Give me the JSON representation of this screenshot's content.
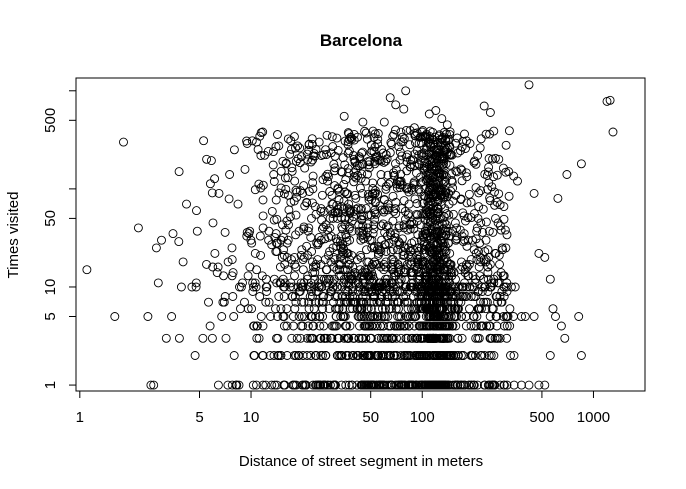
{
  "chart_data": {
    "type": "scatter",
    "title": "Barcelona",
    "xlabel": "Distance of street segment in meters",
    "ylabel": "Times visited",
    "x_scale": "log",
    "y_scale": "log",
    "xlim": [
      0.95,
      2000
    ],
    "ylim": [
      0.87,
      1350
    ],
    "x_ticks": [
      1,
      5,
      10,
      50,
      100,
      500,
      1000
    ],
    "x_tick_labels": [
      "1",
      "5",
      "10",
      "50",
      "100",
      "500",
      "1000"
    ],
    "y_ticks": [
      1,
      5,
      10,
      50,
      500
    ],
    "y_tick_labels": [
      "1",
      "5",
      "10",
      "50",
      "500"
    ],
    "y_minor_ticks": [
      100,
      1000
    ],
    "grid": false,
    "legend": "none",
    "marker": "open-circle",
    "sampled_points": [
      [
        1.1,
        15
      ],
      [
        1.6,
        5
      ],
      [
        1.8,
        300
      ],
      [
        2.2,
        40
      ],
      [
        2.5,
        5
      ],
      [
        2.6,
        1
      ],
      [
        2.7,
        1
      ],
      [
        2.8,
        25
      ],
      [
        3.0,
        30
      ],
      [
        3.2,
        3
      ],
      [
        3.5,
        35
      ],
      [
        3.8,
        150
      ],
      [
        4.2,
        70
      ],
      [
        4.8,
        60
      ],
      [
        5.5,
        200
      ],
      [
        6.0,
        45
      ],
      [
        6.5,
        90
      ],
      [
        7.5,
        140
      ],
      [
        8.0,
        250
      ],
      [
        9.5,
        290
      ],
      [
        12,
        220
      ],
      [
        14,
        270
      ],
      [
        16,
        180
      ],
      [
        18,
        120
      ],
      [
        20,
        90
      ],
      [
        25,
        300
      ],
      [
        30,
        270
      ],
      [
        35,
        550
      ],
      [
        40,
        200
      ],
      [
        45,
        480
      ],
      [
        55,
        320
      ],
      [
        60,
        480
      ],
      [
        65,
        850
      ],
      [
        70,
        720
      ],
      [
        75,
        300
      ],
      [
        78,
        650
      ],
      [
        80,
        1000
      ],
      [
        90,
        420
      ],
      [
        100,
        380
      ],
      [
        110,
        580
      ],
      [
        120,
        630
      ],
      [
        130,
        520
      ],
      [
        140,
        450
      ],
      [
        160,
        330
      ],
      [
        190,
        290
      ],
      [
        230,
        700
      ],
      [
        250,
        600
      ],
      [
        280,
        200
      ],
      [
        320,
        150
      ],
      [
        360,
        120
      ],
      [
        420,
        1150
      ],
      [
        450,
        90
      ],
      [
        480,
        22
      ],
      [
        520,
        20
      ],
      [
        560,
        12
      ],
      [
        620,
        80
      ],
      [
        700,
        140
      ],
      [
        850,
        180
      ],
      [
        1200,
        780
      ],
      [
        1250,
        800
      ],
      [
        1300,
        380
      ],
      [
        380,
        5
      ],
      [
        400,
        5
      ],
      [
        450,
        5
      ],
      [
        580,
        6
      ],
      [
        600,
        5
      ],
      [
        650,
        4
      ],
      [
        820,
        5
      ],
      [
        380,
        1
      ],
      [
        420,
        1
      ],
      [
        480,
        1
      ],
      [
        520,
        1
      ],
      [
        560,
        2
      ],
      [
        680,
        3
      ],
      [
        850,
        2
      ]
    ],
    "dense_region": {
      "x_range": [
        2.5,
        350
      ],
      "y_levels": [
        1,
        2,
        3,
        4,
        5,
        6,
        7,
        8,
        9,
        10
      ],
      "upper_cloud_y_range": [
        10,
        400
      ],
      "spike_x": 120
    }
  }
}
